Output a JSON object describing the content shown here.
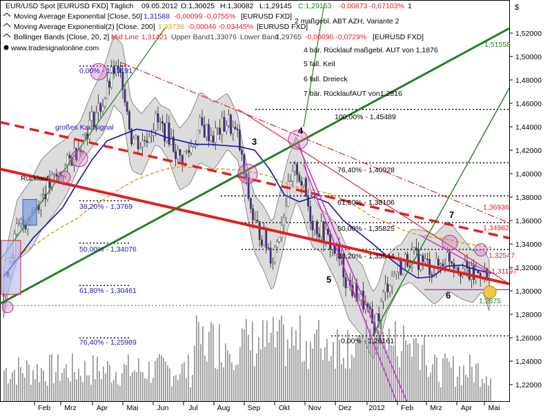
{
  "chart_data": {
    "type": "line",
    "title": "EUR/USD Spot [EURUSD FXD]  Täglich",
    "ohlc_header": {
      "date": "09.05.2012",
      "open": "O:1,30025",
      "high": "H:1,30082",
      "low": "L:1,29145",
      "close": "C:1,29153",
      "change": "-0,00873",
      "change_pct": "-0,67103%"
    },
    "legend": [
      {
        "text": "Moving Average Exponential [Close, 50]",
        "value": "1,31588",
        "change": "-0,00099 -0,0755%",
        "suffix": "[EURUSD FXD]",
        "color": "#1a1ab0"
      },
      {
        "text": "Moving Average Exponential(2) [Close, 200]",
        "value": "1,33738",
        "change": "-0,00046 -0,03445%",
        "suffix": "[EURUSD FXD]",
        "color": "#e6a020"
      },
      {
        "text": "Bollinger Bands [Close, 20, 2]",
        "mid_label": "Mid Line",
        "mid": "1,31421",
        "upper_label": "Upper Band",
        "upper": "1,33076",
        "lower_label": "Lower Band",
        "lower": "1,29765",
        "change": "-0,00096 -0,0729%",
        "suffix": "[EURUSD FXD]",
        "color": "#404040"
      }
    ],
    "source": "www.tradesignalonline.com",
    "currency_symbol": "$",
    "ylim": [
      1.205,
      1.536
    ],
    "yticks": [
      "1,22000",
      "1,24000",
      "1,26000",
      "1,28000",
      "1,30000",
      "1,32000",
      "1,34000",
      "1,36000",
      "1,38000",
      "1,40000",
      "1,42000",
      "1,44000",
      "1,46000",
      "1,48000",
      "1,50000",
      "1,52000"
    ],
    "xticks": [
      "Feb",
      "Mrz",
      "Apr",
      "Mai",
      "Jun",
      "Jul",
      "Aug",
      "Sep",
      "Okt",
      "Nov",
      "Dez",
      "2012",
      "Feb",
      "Mrz",
      "Apr",
      "Mai"
    ],
    "fib_levels": [
      {
        "label": "0,00% - 1,49191",
        "value": 1.4919
      },
      {
        "label": "38,20% - 1,3769",
        "value": 1.3769
      },
      {
        "label": "50,00% - 1,34076",
        "value": 1.3408
      },
      {
        "label": "61,80% - 1,30461",
        "value": 1.3046
      },
      {
        "label": "76,40% - 1,25989",
        "value": 1.2599
      },
      {
        "label": "100,00% - 1,45489",
        "value": 1.4549
      },
      {
        "label": "76,40% - 1,40928",
        "value": 1.4093
      },
      {
        "label": "61,80% - 1,38106",
        "value": 1.3811
      },
      {
        "label": "50,00% - 1,35825",
        "value": 1.3583
      },
      {
        "label": "38,20% - 1,33544",
        "value": 1.3354
      },
      {
        "label": "0,00% - 1,26161",
        "value": 1.2616
      }
    ],
    "price_tags": [
      {
        "text": "1,51558",
        "color": "#208020"
      },
      {
        "text": "1,36936",
        "color": "#e02020"
      },
      {
        "text": "1,34982",
        "color": "#e02020"
      },
      {
        "text": "1,32547",
        "color": "#e02020"
      },
      {
        "text": "1,31197",
        "color": "#e02020"
      },
      {
        "text": "1,2875",
        "color": "#208020"
      }
    ],
    "annotations_list": [
      "2 maßgebl. ABT AZH, Variante 2",
      "4 bär. Rücklauf maßgebl. AUT von 1,1876",
      "5 fall. Keil",
      "6 fall. Dreieck",
      "7 bär. RücklaufAUT von1,2816"
    ],
    "chart_labels": {
      "kaufsignal": "großes Kaufsignal",
      "ruecklauf": "Rücklauf",
      "n3": "3",
      "n4": "4",
      "n5": "5",
      "n6": "6",
      "n7": "7",
      "n1": "1"
    },
    "series": [
      {
        "name": "Moving Average Exponential [Close, 50]",
        "values": [
          1.312,
          1.328,
          1.345,
          1.358,
          1.371,
          1.392,
          1.412,
          1.428,
          1.433,
          1.438,
          1.436,
          1.431,
          1.428,
          1.425,
          1.425,
          1.424,
          1.423,
          1.42,
          1.404,
          1.382,
          1.376,
          1.38,
          1.375,
          1.36,
          1.35,
          1.34,
          1.329,
          1.319,
          1.311,
          1.312,
          1.321,
          1.322,
          1.318,
          1.315
        ]
      },
      {
        "name": "Moving Average Exponential(2) [Close, 200]",
        "values": [
          1.326,
          1.331,
          1.338,
          1.347,
          1.355,
          1.362,
          1.372,
          1.38,
          1.388,
          1.395,
          1.4,
          1.404,
          1.406,
          1.405,
          1.404,
          1.404,
          1.403,
          1.401,
          1.398,
          1.392,
          1.388,
          1.386,
          1.383,
          1.378,
          1.371,
          1.363,
          1.358,
          1.352,
          1.348,
          1.346,
          1.344,
          1.341,
          1.339,
          1.337
        ]
      }
    ]
  }
}
